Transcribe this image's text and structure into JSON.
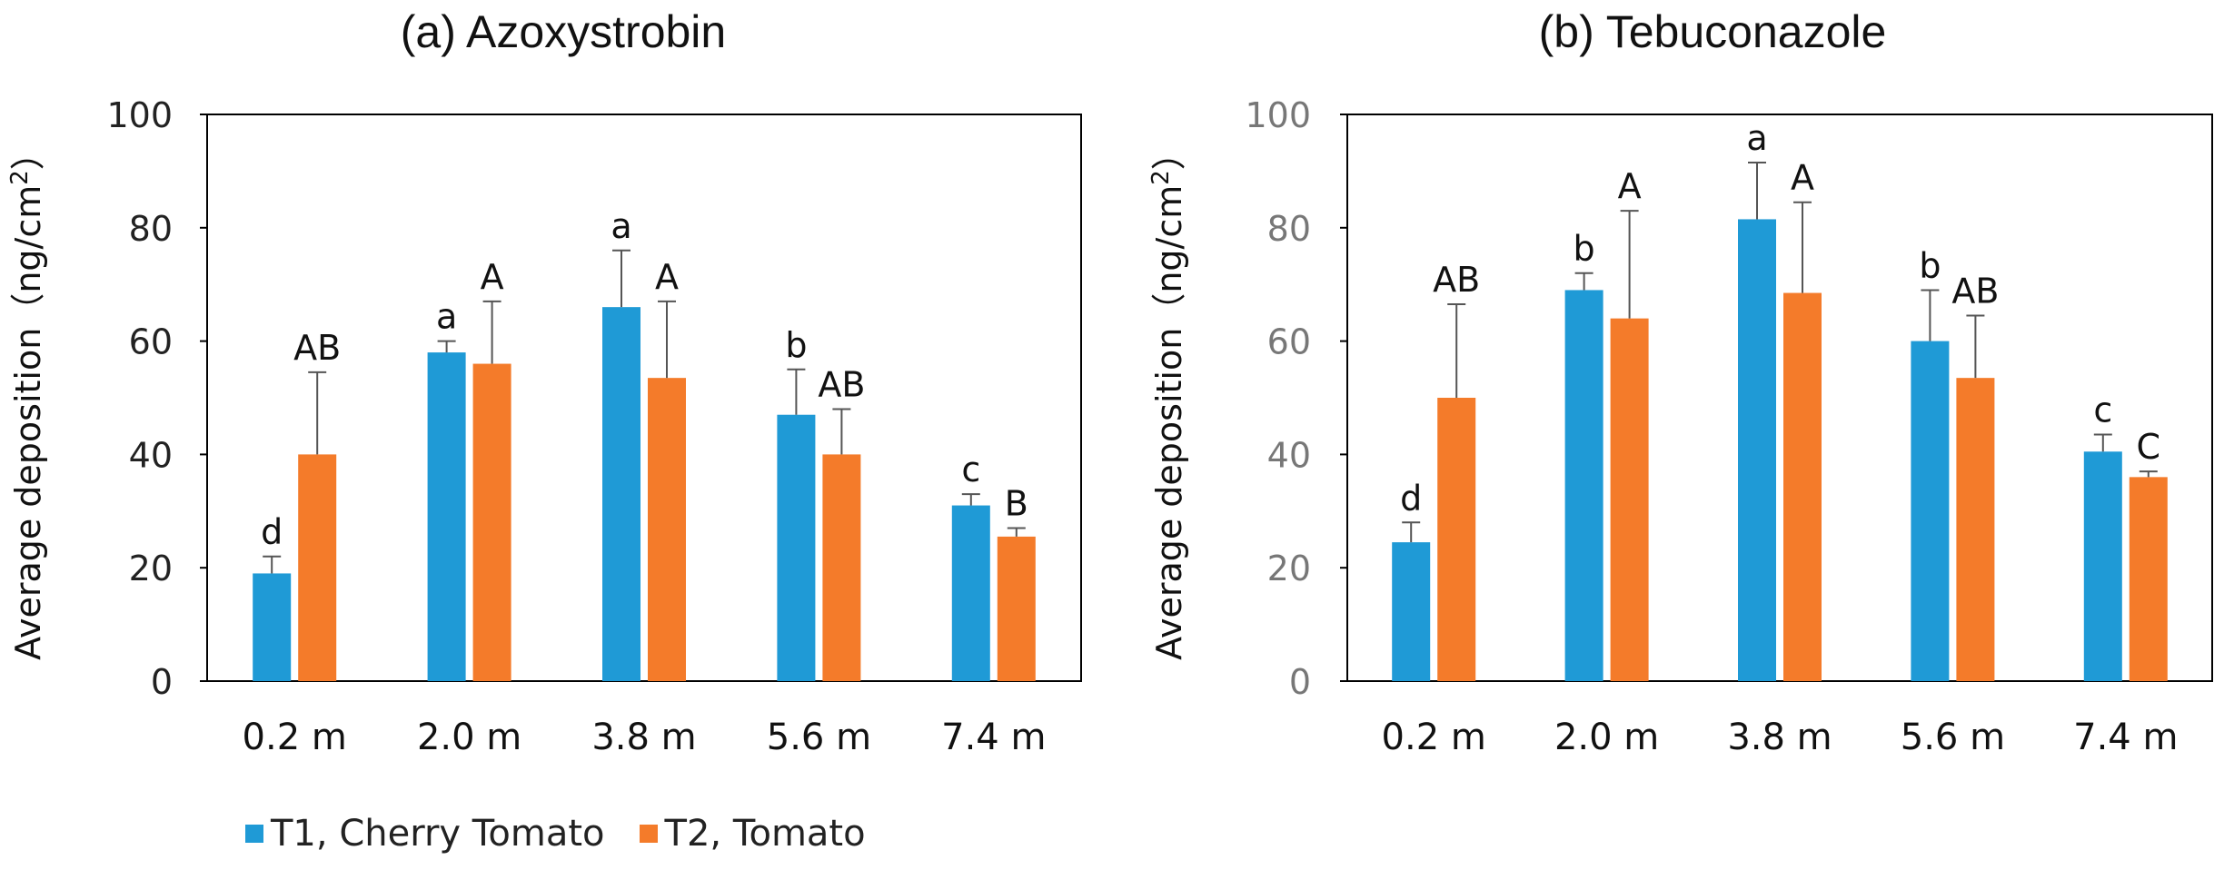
{
  "colors": {
    "t1": "#1f9ad6",
    "t2": "#f47b2a",
    "axis": "#000000",
    "tick_text": "#333333"
  },
  "legend": [
    {
      "label": "T1, Cherry Tomato",
      "color": "#1f9ad6"
    },
    {
      "label": "T2, Tomato",
      "color": "#f47b2a"
    }
  ],
  "chart_data": [
    {
      "type": "bar",
      "title": "(a)  Azoxystrobin",
      "ylabel": "Average  deposition（ng/cm",
      "ylabel_sup": "2",
      "ylabel_end": "）",
      "xlabel": "",
      "categories": [
        "0.2 m",
        "2.0 m",
        "3.8 m",
        "5.6 m",
        "7.4 m"
      ],
      "ylim": [
        0,
        100
      ],
      "yticks": [
        0,
        20,
        40,
        60,
        80,
        100
      ],
      "series": [
        {
          "name": "T1, Cherry Tomato",
          "values": [
            19,
            58,
            66,
            47,
            31
          ],
          "errors": [
            3,
            2,
            10,
            8,
            2
          ],
          "labels": [
            "d",
            "a",
            "a",
            "b",
            "c"
          ]
        },
        {
          "name": "T2, Tomato",
          "values": [
            40,
            56,
            53.5,
            40,
            25.5
          ],
          "errors": [
            14.5,
            11,
            13.5,
            8,
            1.5
          ],
          "labels": [
            "AB",
            "A",
            "A",
            "AB",
            "B"
          ]
        }
      ]
    },
    {
      "type": "bar",
      "title": "(b)  Tebuconazole",
      "ylabel": "Average  deposition（ng/cm",
      "ylabel_sup": "2",
      "ylabel_end": "）",
      "xlabel": "",
      "categories": [
        "0.2 m",
        "2.0 m",
        "3.8 m",
        "5.6 m",
        "7.4 m"
      ],
      "ylim": [
        0,
        100
      ],
      "yticks": [
        0,
        20,
        40,
        60,
        80,
        100
      ],
      "series": [
        {
          "name": "T1, Cherry Tomato",
          "values": [
            24.5,
            69,
            81.5,
            60,
            40.5
          ],
          "errors": [
            3.5,
            3,
            10,
            9,
            3
          ],
          "labels": [
            "d",
            "b",
            "a",
            "b",
            "c"
          ]
        },
        {
          "name": "T2, Tomato",
          "values": [
            50,
            64,
            68.5,
            53.5,
            36
          ],
          "errors": [
            16.5,
            19,
            16,
            11,
            1
          ],
          "labels": [
            "AB",
            "A",
            "A",
            "AB",
            "C"
          ]
        }
      ]
    }
  ]
}
